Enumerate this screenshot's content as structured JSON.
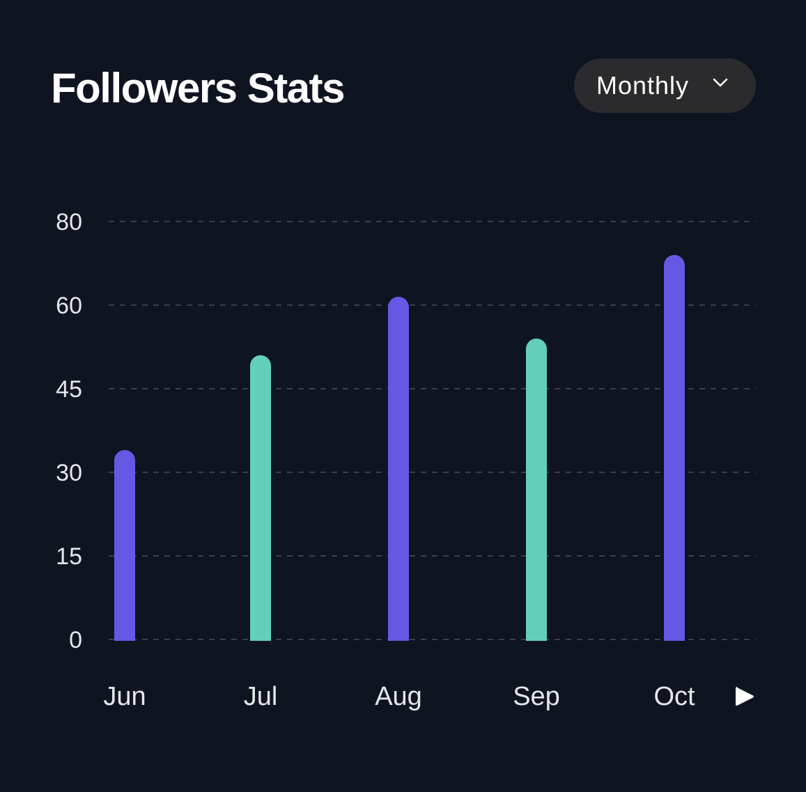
{
  "header": {
    "title": "Followers Stats",
    "period_selector": {
      "selected": "Monthly",
      "icon": "chevron-down-icon"
    }
  },
  "controls": {
    "next_icon": "play-icon"
  },
  "colors": {
    "background": "#0f1421",
    "bar_primary": "#6558e2",
    "bar_secondary": "#62d0b8",
    "grid": "#3a3f48",
    "axis_text": "#e6e6ea"
  },
  "chart_data": {
    "type": "bar",
    "title": "Followers Stats",
    "xlabel": "",
    "ylabel": "",
    "categories": [
      "Jun",
      "Jul",
      "Aug",
      "Sep",
      "Oct"
    ],
    "values": [
      34,
      51,
      62,
      54,
      72
    ],
    "bar_colors": [
      "#6558e2",
      "#62d0b8",
      "#6558e2",
      "#62d0b8",
      "#6558e2"
    ],
    "yticks": [
      0,
      15,
      30,
      45,
      60,
      80
    ],
    "ylim": [
      0,
      80
    ],
    "grid": true,
    "legend": "none"
  }
}
